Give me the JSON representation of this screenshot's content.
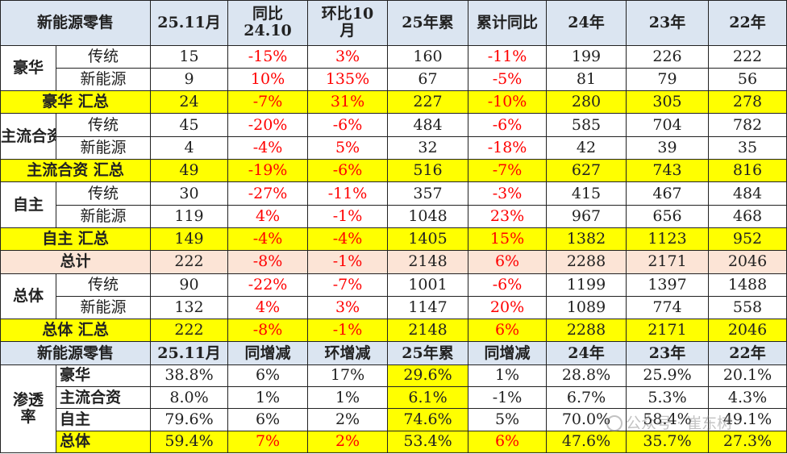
{
  "header": [
    "新能源零售",
    "25.11月",
    "同比24.10",
    "环比10月",
    "25年累",
    "累计同比",
    "24年",
    "23年",
    "22年"
  ],
  "sections": [
    {
      "group": "豪华",
      "rows": [
        {
          "sub": "传统",
          "cells": [
            "15",
            "-15%",
            "3%",
            "160",
            "-11%",
            "199",
            "226",
            "222"
          ]
        },
        {
          "sub": "新能源",
          "cells": [
            "9",
            "10%",
            "135%",
            "67",
            "-5%",
            "81",
            "79",
            "56"
          ]
        }
      ],
      "summary": {
        "label": "豪华  汇总",
        "cells": [
          "24",
          "-7%",
          "31%",
          "227",
          "-10%",
          "280",
          "305",
          "278"
        ]
      }
    },
    {
      "group": "主流合资",
      "rows": [
        {
          "sub": "传统",
          "cells": [
            "45",
            "-20%",
            "-6%",
            "484",
            "-6%",
            "585",
            "704",
            "782"
          ]
        },
        {
          "sub": "新能源",
          "cells": [
            "4",
            "-4%",
            "5%",
            "32",
            "-18%",
            "42",
            "39",
            "35"
          ]
        }
      ],
      "summary": {
        "label": "主流合资  汇总",
        "cells": [
          "49",
          "-19%",
          "-6%",
          "516",
          "-7%",
          "627",
          "743",
          "816"
        ]
      }
    },
    {
      "group": "自主",
      "rows": [
        {
          "sub": "传统",
          "cells": [
            "30",
            "-27%",
            "-11%",
            "357",
            "-3%",
            "415",
            "467",
            "484"
          ]
        },
        {
          "sub": "新能源",
          "cells": [
            "119",
            "4%",
            "-1%",
            "1048",
            "23%",
            "967",
            "656",
            "468"
          ]
        }
      ],
      "summary": {
        "label": "自主  汇总",
        "cells": [
          "149",
          "-4%",
          "-4%",
          "1405",
          "15%",
          "1382",
          "1123",
          "952"
        ]
      }
    }
  ],
  "total": {
    "label": "总计",
    "cells": [
      "222",
      "-8%",
      "-1%",
      "2148",
      "6%",
      "2288",
      "2171",
      "2046"
    ]
  },
  "overall": {
    "group": "总体",
    "rows": [
      {
        "sub": "传统",
        "cells": [
          "90",
          "-22%",
          "-7%",
          "1001",
          "-6%",
          "1199",
          "1397",
          "1488"
        ]
      },
      {
        "sub": "新能源",
        "cells": [
          "132",
          "4%",
          "3%",
          "1147",
          "20%",
          "1089",
          "774",
          "558"
        ]
      }
    ],
    "summary": {
      "label": "总体  汇总",
      "cells": [
        "222",
        "-8%",
        "-1%",
        "2148",
        "6%",
        "2288",
        "2171",
        "2046"
      ]
    }
  },
  "header2": [
    "新能源零售",
    "25.11月",
    "同增减",
    "环增减",
    "25年累",
    "同增减",
    "24年",
    "23年",
    "22年"
  ],
  "penetration": {
    "group": "渗透率",
    "rows": [
      {
        "sub": "豪华",
        "cells": [
          "38.8%",
          "6%",
          "17%",
          "29.6%",
          "1%",
          "28.8%",
          "25.9%",
          "20.1%"
        ]
      },
      {
        "sub": "主流合资",
        "cells": [
          "8.0%",
          "1%",
          "1%",
          "6.1%",
          "-1%",
          "6.7%",
          "5.3%",
          "4.3%"
        ]
      },
      {
        "sub": "自主",
        "cells": [
          "79.6%",
          "6%",
          "2%",
          "74.6%",
          "5%",
          "70.0%",
          "58.4%",
          "49.1%"
        ]
      },
      {
        "sub": "总体",
        "cells": [
          "59.4%",
          "7%",
          "2%",
          "53.4%",
          "6%",
          "47.6%",
          "35.7%",
          "27.3%"
        ]
      }
    ]
  },
  "watermark": "公众号 · 崔东树",
  "colors": {
    "header_bg": "#dbe5f1",
    "summary_bg": "#ffff00",
    "total_bg": "#fce4d6",
    "red_text": "#ff0000"
  }
}
